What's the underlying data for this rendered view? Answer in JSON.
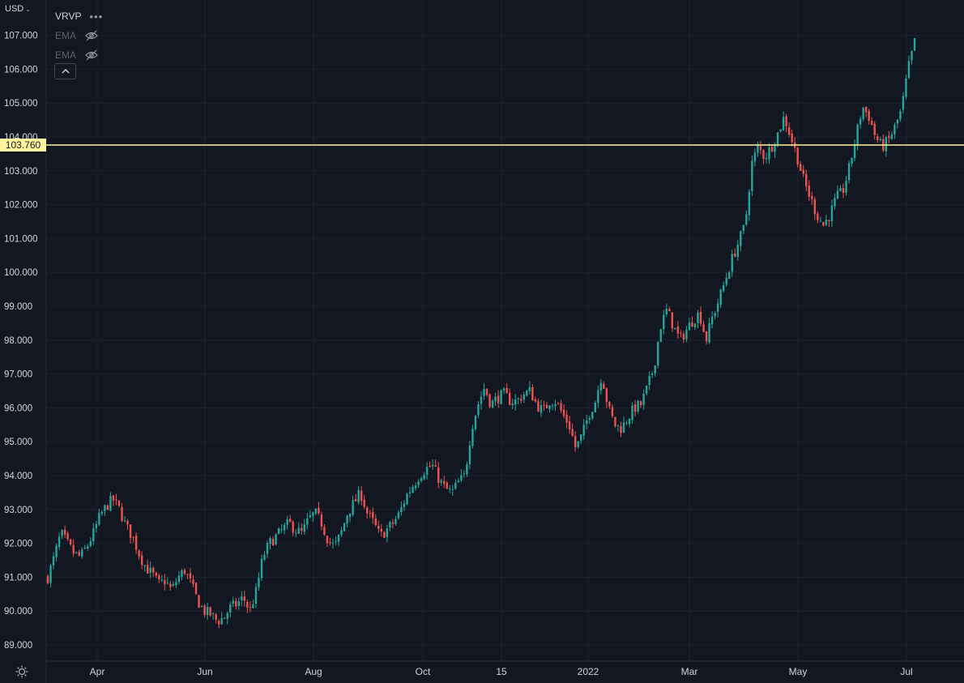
{
  "currency_label": "USD",
  "legend": {
    "vrvp_label": "VRVP",
    "ema1_label": "EMA",
    "ema2_label": "EMA"
  },
  "icons": {
    "currency_dropdown": "chevron-down-icon",
    "more": "more-icon",
    "hidden_eye": "eye-off-icon",
    "collapse": "chevron-up-icon",
    "settings": "sun-settings-icon"
  },
  "colors": {
    "background": "#131722",
    "grid": "#1e2230",
    "text": "#d1d4dc",
    "up": "#26a69a",
    "down": "#ef5350",
    "horizontal_line": "#fff59d"
  },
  "chart_data": {
    "type": "candlestick",
    "y_ticks": [
      "89.000",
      "90.000",
      "91.000",
      "92.000",
      "93.000",
      "94.000",
      "95.000",
      "96.000",
      "97.000",
      "98.000",
      "99.000",
      "100.000",
      "101.000",
      "102.000",
      "103.000",
      "104.000",
      "105.000",
      "106.000",
      "107.000"
    ],
    "x_ticks": [
      "Apr",
      "Jun",
      "Aug",
      "Oct",
      "15",
      "2022",
      "Mar",
      "May",
      "Jul"
    ],
    "ylim": [
      88.5,
      107.4
    ],
    "horizontal_line": {
      "value": 103.76,
      "label": "103.760"
    },
    "close_series": [
      91.0,
      91.6,
      92.3,
      92.0,
      91.7,
      91.6,
      91.9,
      92.3,
      92.8,
      93.1,
      93.3,
      93.0,
      92.5,
      92.2,
      91.7,
      91.3,
      91.1,
      90.8,
      90.9,
      90.6,
      91.0,
      91.2,
      90.8,
      90.3,
      90.0,
      89.9,
      89.7,
      89.8,
      90.1,
      90.2,
      90.4,
      90.0,
      90.6,
      91.6,
      92.0,
      92.2,
      92.4,
      92.6,
      92.4,
      92.3,
      92.7,
      92.9,
      92.6,
      92.1,
      91.9,
      92.3,
      92.9,
      93.2,
      93.5,
      92.9,
      92.6,
      92.2,
      92.4,
      92.6,
      92.9,
      93.4,
      93.7,
      94.0,
      94.2,
      94.3,
      93.9,
      93.6,
      93.5,
      93.8,
      94.0,
      95.4,
      96.1,
      96.6,
      96.1,
      96.3,
      96.4,
      96.2,
      96.2,
      96.4,
      96.5,
      96.1,
      95.9,
      96.2,
      96.2,
      95.8,
      95.5,
      94.8,
      95.2,
      95.8,
      96.2,
      97.0,
      96.0,
      95.5,
      95.4,
      95.7,
      96.0,
      96.1,
      96.6,
      97.2,
      98.4,
      98.9,
      98.4,
      98.0,
      98.3,
      98.6,
      98.8,
      98.0,
      98.7,
      99.2,
      99.8,
      100.4,
      100.9,
      101.4,
      103.2,
      103.7,
      103.4,
      103.7,
      104.1,
      104.6,
      104.0,
      103.4,
      102.7,
      102.2,
      101.7,
      101.4,
      101.7,
      102.2,
      102.4,
      103.1,
      104.0,
      104.9,
      104.6,
      104.0,
      103.7,
      103.9,
      104.3,
      104.8,
      106.0,
      106.8
    ]
  }
}
